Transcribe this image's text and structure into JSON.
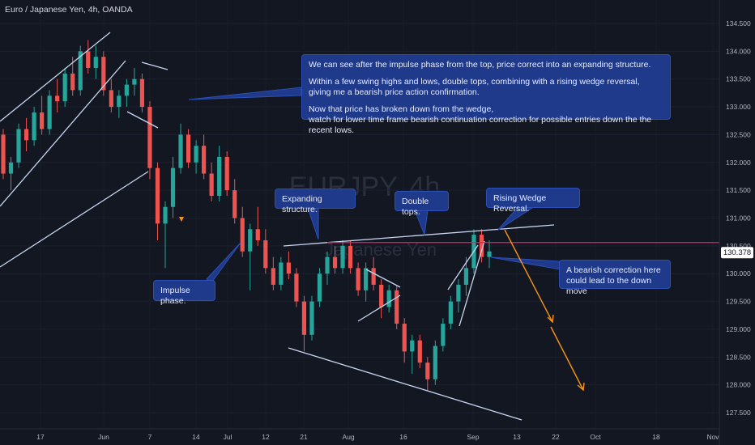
{
  "header": {
    "symbol_title": "Euro / Japanese Yen, 4h, OANDA"
  },
  "colors": {
    "background": "#131722",
    "bull": "#26a69a",
    "bear": "#ef5350",
    "trendline": "#c8d6f0",
    "resistance": "#e91e63",
    "arrow": "#f7931a",
    "callout_bg": "#1f3a8a",
    "last_price_bg": "#ffffff"
  },
  "watermark": {
    "symbol": "EURJPY, 4h",
    "name": "Japanese Yen"
  },
  "chart_data": {
    "type": "candlestick",
    "price_axis": {
      "ticks": [
        "134.500",
        "134.000",
        "133.500",
        "133.000",
        "132.500",
        "132.000",
        "131.500",
        "131.000",
        "130.500",
        "130.000",
        "129.500",
        "129.000",
        "128.500",
        "128.000",
        "127.500"
      ],
      "range": [
        127.3,
        134.8
      ]
    },
    "time_axis": {
      "ticks": [
        "17",
        "Jun",
        "7",
        "14",
        "Jul",
        "12",
        "21",
        "Aug",
        "16",
        "Sep",
        "13",
        "22",
        "Oct",
        "18",
        "Nov"
      ]
    },
    "last_price": "130.378",
    "resistance_level": 130.56,
    "candles": [
      [
        132.5,
        132.6,
        131.7,
        131.8
      ],
      [
        131.8,
        132.1,
        131.5,
        132.0
      ],
      [
        132.0,
        132.7,
        131.9,
        132.6
      ],
      [
        132.6,
        132.8,
        132.2,
        132.4
      ],
      [
        132.4,
        133.0,
        132.3,
        132.9
      ],
      [
        132.9,
        133.2,
        132.5,
        132.6
      ],
      [
        132.6,
        133.3,
        132.5,
        133.2
      ],
      [
        133.2,
        133.5,
        132.9,
        133.1
      ],
      [
        133.1,
        133.7,
        133.0,
        133.6
      ],
      [
        133.6,
        133.9,
        133.2,
        133.3
      ],
      [
        133.3,
        134.1,
        133.2,
        134.0
      ],
      [
        134.0,
        134.2,
        133.6,
        133.7
      ],
      [
        133.7,
        134.1,
        133.5,
        133.9
      ],
      [
        133.9,
        134.0,
        133.2,
        133.3
      ],
      [
        133.3,
        133.5,
        132.9,
        133.0
      ],
      [
        133.0,
        133.3,
        132.8,
        133.2
      ],
      [
        133.2,
        133.5,
        133.0,
        133.4
      ],
      [
        133.4,
        133.7,
        133.2,
        133.5
      ],
      [
        133.5,
        133.6,
        132.9,
        133.0
      ],
      [
        133.0,
        133.1,
        131.7,
        131.9
      ],
      [
        131.9,
        132.0,
        130.6,
        130.9
      ],
      [
        130.9,
        131.3,
        130.1,
        131.2
      ],
      [
        131.2,
        132.1,
        131.0,
        131.9
      ],
      [
        131.9,
        132.7,
        131.8,
        132.5
      ],
      [
        132.5,
        132.6,
        131.9,
        132.0
      ],
      [
        132.0,
        132.4,
        131.8,
        132.3
      ],
      [
        132.3,
        132.5,
        131.7,
        131.8
      ],
      [
        131.8,
        132.0,
        131.3,
        131.4
      ],
      [
        131.4,
        132.3,
        131.3,
        132.1
      ],
      [
        132.1,
        132.2,
        131.4,
        131.5
      ],
      [
        131.5,
        131.7,
        130.9,
        131.0
      ],
      [
        131.0,
        131.2,
        130.3,
        130.4
      ],
      [
        130.4,
        130.9,
        129.7,
        130.8
      ],
      [
        130.8,
        131.2,
        130.5,
        130.6
      ],
      [
        130.6,
        130.8,
        130.0,
        130.1
      ],
      [
        130.1,
        130.3,
        129.7,
        129.8
      ],
      [
        129.8,
        130.3,
        129.7,
        130.2
      ],
      [
        130.2,
        130.4,
        129.9,
        130.0
      ],
      [
        130.0,
        130.1,
        129.4,
        129.5
      ],
      [
        129.5,
        129.6,
        128.6,
        128.9
      ],
      [
        128.9,
        129.6,
        128.8,
        129.5
      ],
      [
        129.5,
        130.1,
        129.4,
        130.0
      ],
      [
        130.0,
        130.4,
        129.8,
        130.3
      ],
      [
        130.3,
        130.5,
        130.0,
        130.1
      ],
      [
        130.1,
        130.6,
        130.0,
        130.5
      ],
      [
        130.5,
        130.6,
        130.0,
        130.1
      ],
      [
        130.1,
        130.2,
        129.6,
        129.7
      ],
      [
        129.7,
        130.2,
        129.5,
        130.1
      ],
      [
        130.1,
        130.3,
        129.7,
        129.8
      ],
      [
        129.8,
        129.9,
        129.2,
        129.4
      ],
      [
        129.4,
        129.8,
        129.3,
        129.7
      ],
      [
        129.7,
        129.8,
        129.0,
        129.1
      ],
      [
        129.1,
        129.2,
        128.4,
        128.6
      ],
      [
        128.6,
        128.9,
        128.2,
        128.8
      ],
      [
        128.8,
        128.9,
        128.3,
        128.4
      ],
      [
        128.4,
        128.5,
        127.9,
        128.1
      ],
      [
        128.1,
        128.8,
        128.0,
        128.7
      ],
      [
        128.7,
        129.2,
        128.6,
        129.1
      ],
      [
        129.1,
        129.6,
        129.0,
        129.5
      ],
      [
        129.5,
        129.9,
        129.3,
        129.8
      ],
      [
        129.8,
        130.3,
        129.6,
        130.1
      ],
      [
        130.1,
        130.8,
        130.0,
        130.7
      ],
      [
        130.7,
        130.8,
        130.2,
        130.3
      ],
      [
        130.3,
        130.6,
        130.1,
        130.4
      ]
    ]
  },
  "annotations": {
    "main_note": {
      "line1": "We can see after the impulse phase from the top, price correct into an expanding structure.",
      "line2": "Within a few swing highs and lows, double tops, combining with a rising wedge reversal,\ngiving me a bearish price action confirmation.",
      "line3": "Now that price has broken down from the wedge,\nwatch for lower time frame bearish continuation correction for possible entries down the the recent lows."
    },
    "expanding": "Expanding structure.",
    "double_tops": "Double tops.",
    "rising_wedge": "Rising Wedge Reversal.",
    "impulse": "Impulse phase.",
    "bearish": "A bearish correction here\ncould lead to the down move"
  }
}
